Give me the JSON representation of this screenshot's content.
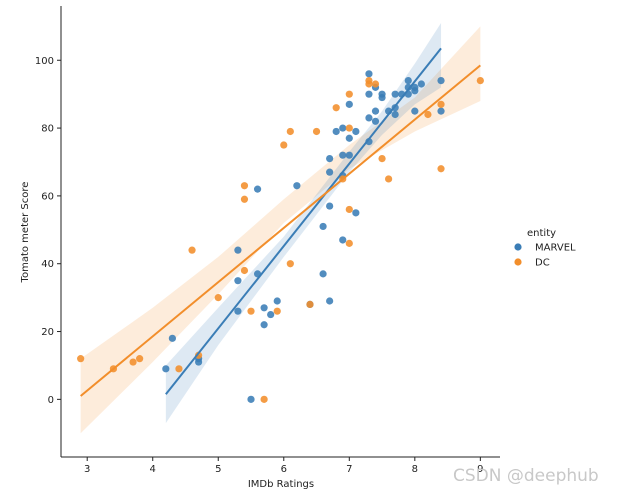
{
  "chart_data": {
    "type": "scatter",
    "title": "",
    "xlabel": "IMDb Ratings",
    "ylabel": "Tomato meter Score",
    "xlim": [
      2.6,
      9.3
    ],
    "ylim": [
      -17,
      116
    ],
    "xticks": [
      3,
      4,
      5,
      6,
      7,
      8,
      9
    ],
    "yticks": [
      0,
      20,
      40,
      60,
      80,
      100
    ],
    "legend": {
      "title": "entity",
      "placement": "right"
    },
    "colors": {
      "MARVEL": "#3a7db6",
      "DC": "#f28e2b"
    },
    "series": [
      {
        "name": "MARVEL",
        "color": "#3a7db6",
        "points": [
          [
            4.2,
            9
          ],
          [
            4.3,
            18
          ],
          [
            4.7,
            12
          ],
          [
            4.7,
            11
          ],
          [
            5.3,
            44
          ],
          [
            5.3,
            35
          ],
          [
            5.3,
            26
          ],
          [
            5.5,
            0
          ],
          [
            5.6,
            62
          ],
          [
            5.6,
            37
          ],
          [
            5.7,
            27
          ],
          [
            5.7,
            22
          ],
          [
            5.8,
            25
          ],
          [
            5.9,
            29
          ],
          [
            6.2,
            63
          ],
          [
            6.4,
            28
          ],
          [
            6.6,
            51
          ],
          [
            6.6,
            37
          ],
          [
            6.7,
            71
          ],
          [
            6.7,
            67
          ],
          [
            6.7,
            57
          ],
          [
            6.7,
            29
          ],
          [
            6.8,
            79
          ],
          [
            6.9,
            80
          ],
          [
            6.9,
            72
          ],
          [
            6.9,
            66
          ],
          [
            6.9,
            47
          ],
          [
            7.0,
            87
          ],
          [
            7.0,
            77
          ],
          [
            7.0,
            72
          ],
          [
            7.1,
            79
          ],
          [
            7.1,
            55
          ],
          [
            7.3,
            96
          ],
          [
            7.3,
            90
          ],
          [
            7.3,
            83
          ],
          [
            7.3,
            76
          ],
          [
            7.4,
            92
          ],
          [
            7.4,
            85
          ],
          [
            7.4,
            82
          ],
          [
            7.5,
            90
          ],
          [
            7.5,
            89
          ],
          [
            7.6,
            85
          ],
          [
            7.7,
            90
          ],
          [
            7.7,
            86
          ],
          [
            7.7,
            84
          ],
          [
            7.8,
            90
          ],
          [
            7.9,
            94
          ],
          [
            7.9,
            92
          ],
          [
            7.9,
            90
          ],
          [
            8.0,
            92
          ],
          [
            8.0,
            91
          ],
          [
            8.0,
            85
          ],
          [
            8.1,
            93
          ],
          [
            8.4,
            94
          ],
          [
            8.4,
            85
          ]
        ],
        "regression": {
          "x": [
            4.2,
            8.4
          ],
          "y": [
            1.5,
            103.5
          ]
        },
        "ci_band": {
          "x": [
            4.2,
            5.0,
            6.0,
            7.0,
            7.5,
            8.0,
            8.4
          ],
          "lower": [
            -7,
            16,
            42,
            67,
            78,
            87,
            92
          ],
          "upper": [
            10,
            27,
            48,
            73,
            85,
            99,
            111
          ]
        }
      },
      {
        "name": "DC",
        "color": "#f28e2b",
        "points": [
          [
            2.9,
            12
          ],
          [
            3.4,
            9
          ],
          [
            3.7,
            11
          ],
          [
            3.8,
            12
          ],
          [
            4.4,
            9
          ],
          [
            4.6,
            44
          ],
          [
            4.7,
            13
          ],
          [
            5.0,
            30
          ],
          [
            5.4,
            63
          ],
          [
            5.4,
            59
          ],
          [
            5.4,
            38
          ],
          [
            5.5,
            26
          ],
          [
            5.7,
            0
          ],
          [
            5.9,
            26
          ],
          [
            6.0,
            75
          ],
          [
            6.1,
            79
          ],
          [
            6.1,
            40
          ],
          [
            6.4,
            28
          ],
          [
            6.5,
            79
          ],
          [
            6.8,
            86
          ],
          [
            6.9,
            65
          ],
          [
            7.0,
            90
          ],
          [
            7.0,
            80
          ],
          [
            7.0,
            56
          ],
          [
            7.0,
            46
          ],
          [
            7.3,
            94
          ],
          [
            7.3,
            93
          ],
          [
            7.4,
            93
          ],
          [
            7.5,
            71
          ],
          [
            7.6,
            65
          ],
          [
            8.2,
            84
          ],
          [
            8.4,
            87
          ],
          [
            8.4,
            68
          ],
          [
            9.0,
            94
          ]
        ],
        "regression": {
          "x": [
            2.9,
            9.0
          ],
          "y": [
            1,
            98.5
          ]
        },
        "ci_band": {
          "x": [
            2.9,
            4.0,
            5.0,
            6.0,
            7.0,
            8.0,
            9.0
          ],
          "lower": [
            -10,
            11,
            31,
            52,
            68,
            79,
            88
          ],
          "upper": [
            12,
            27,
            42,
            59,
            75,
            89,
            110
          ]
        }
      }
    ]
  },
  "watermark": "CSDN @deephub"
}
